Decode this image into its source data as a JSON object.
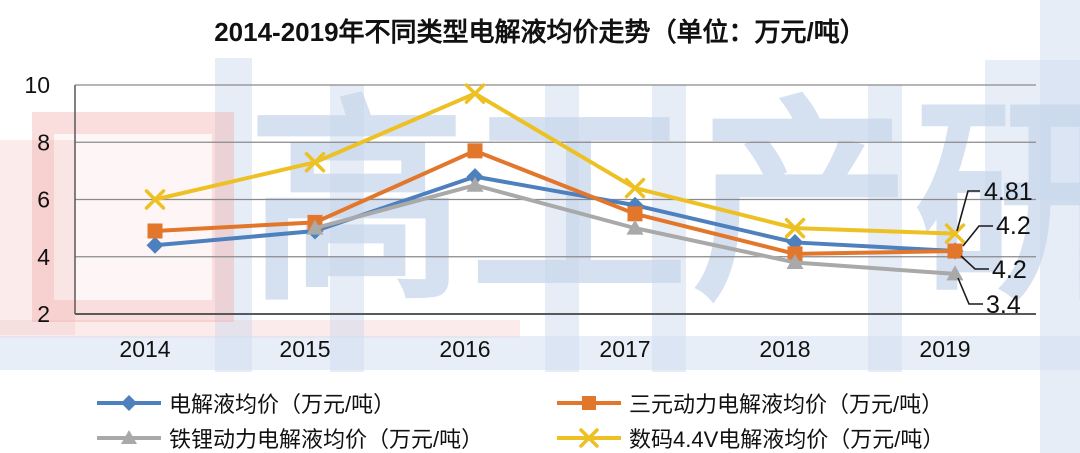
{
  "chart_data": {
    "type": "line",
    "title": "2014-2019年不同类型电解液均价走势（单位：万元/吨）",
    "categories": [
      "2014",
      "2015",
      "2016",
      "2017",
      "2018",
      "2019"
    ],
    "series": [
      {
        "name": "电解液均价（万元/吨）",
        "marker": "diamond",
        "color": "#4E80BE",
        "values": [
          4.4,
          4.9,
          6.8,
          5.8,
          4.5,
          4.2
        ]
      },
      {
        "name": "三元动力电解液均价（万元/吨）",
        "marker": "square",
        "color": "#E2762B",
        "values": [
          4.9,
          5.2,
          7.7,
          5.5,
          4.1,
          4.2
        ]
      },
      {
        "name": "铁锂动力电解液均价（万元/吨）",
        "marker": "triangle",
        "color": "#A9A9A9",
        "values": [
          null,
          5.0,
          6.5,
          5.0,
          3.8,
          3.4
        ]
      },
      {
        "name": "数码4.4V电解液均价（万元/吨）",
        "marker": "x",
        "color": "#EDC024",
        "values": [
          6.0,
          7.3,
          9.7,
          6.4,
          5.0,
          4.81
        ]
      }
    ],
    "ylim": [
      2,
      10
    ],
    "yticks": [
      2,
      4,
      6,
      8,
      10
    ],
    "grid": true,
    "legend_position": "bottom",
    "annotations": [
      {
        "label": "4.81",
        "series": 3,
        "category": "2019",
        "value": 4.81
      },
      {
        "label": "4.2",
        "series": 0,
        "category": "2019",
        "value": 4.2
      },
      {
        "label": "4.2",
        "series": 1,
        "category": "2019",
        "value": 4.2
      },
      {
        "label": "3.4",
        "series": 2,
        "category": "2019",
        "value": 3.4
      }
    ]
  },
  "watermark": {
    "text": "高工产研"
  },
  "colors": {
    "grid": "#8a8a8a",
    "axis": "#595959",
    "text": "#111111",
    "leader": "#1a1a1a"
  }
}
